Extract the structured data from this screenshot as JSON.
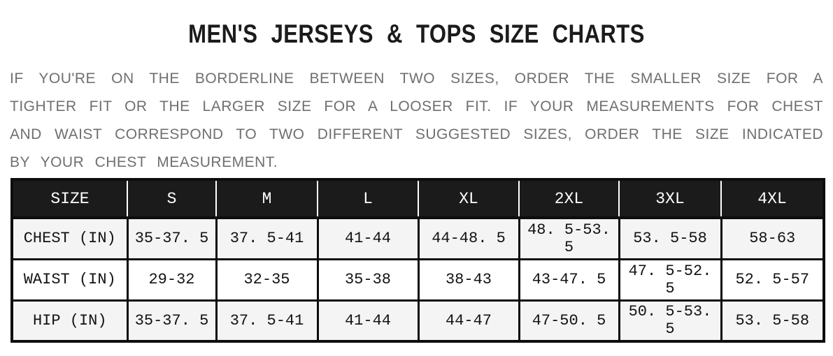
{
  "title": "MEN'S JERSEYS & TOPS SIZE CHARTS",
  "intro": {
    "lines": [
      "IF YOU'RE ON THE BORDERLINE BETWEEN TWO SIZES, ORDER THE SMALLER SIZE FOR A",
      "TIGHTER FIT OR THE LARGER SIZE FOR A LOOSER FIT. IF YOUR MEASUREMENTS FOR CHEST",
      "AND WAIST CORRESPOND TO TWO DIFFERENT SUGGESTED SIZES, ORDER THE SIZE INDICATED",
      "BY YOUR CHEST MEASUREMENT."
    ]
  },
  "size_chart": {
    "columns": [
      "SIZE",
      "S",
      "M",
      "L",
      "XL",
      "2XL",
      "3XL",
      "4XL"
    ],
    "rows": [
      {
        "label": "CHEST (IN)",
        "values": [
          "35-37. 5",
          "37. 5-41",
          "41-44",
          "44-48. 5",
          "48. 5-53. 5",
          "53. 5-58",
          "58-63"
        ]
      },
      {
        "label": "WAIST (IN)",
        "values": [
          "29-32",
          "32-35",
          "35-38",
          "38-43",
          "43-47. 5",
          "47. 5-52. 5",
          "52. 5-57"
        ]
      },
      {
        "label": "HIP (IN)",
        "values": [
          "35-37. 5",
          "37. 5-41",
          "41-44",
          "44-47",
          "47-50. 5",
          "50. 5-53. 5",
          "53. 5-58"
        ]
      }
    ]
  },
  "colors": {
    "header_bg": "#1b1b1b",
    "header_text": "#ffffff",
    "border": "#0d0d0d",
    "row_stripe": "#f4f4f5",
    "row_plain": "#ffffff",
    "body_text": "#121212",
    "intro_text": "#6f6f73",
    "title_text": "#1b1b1d"
  }
}
